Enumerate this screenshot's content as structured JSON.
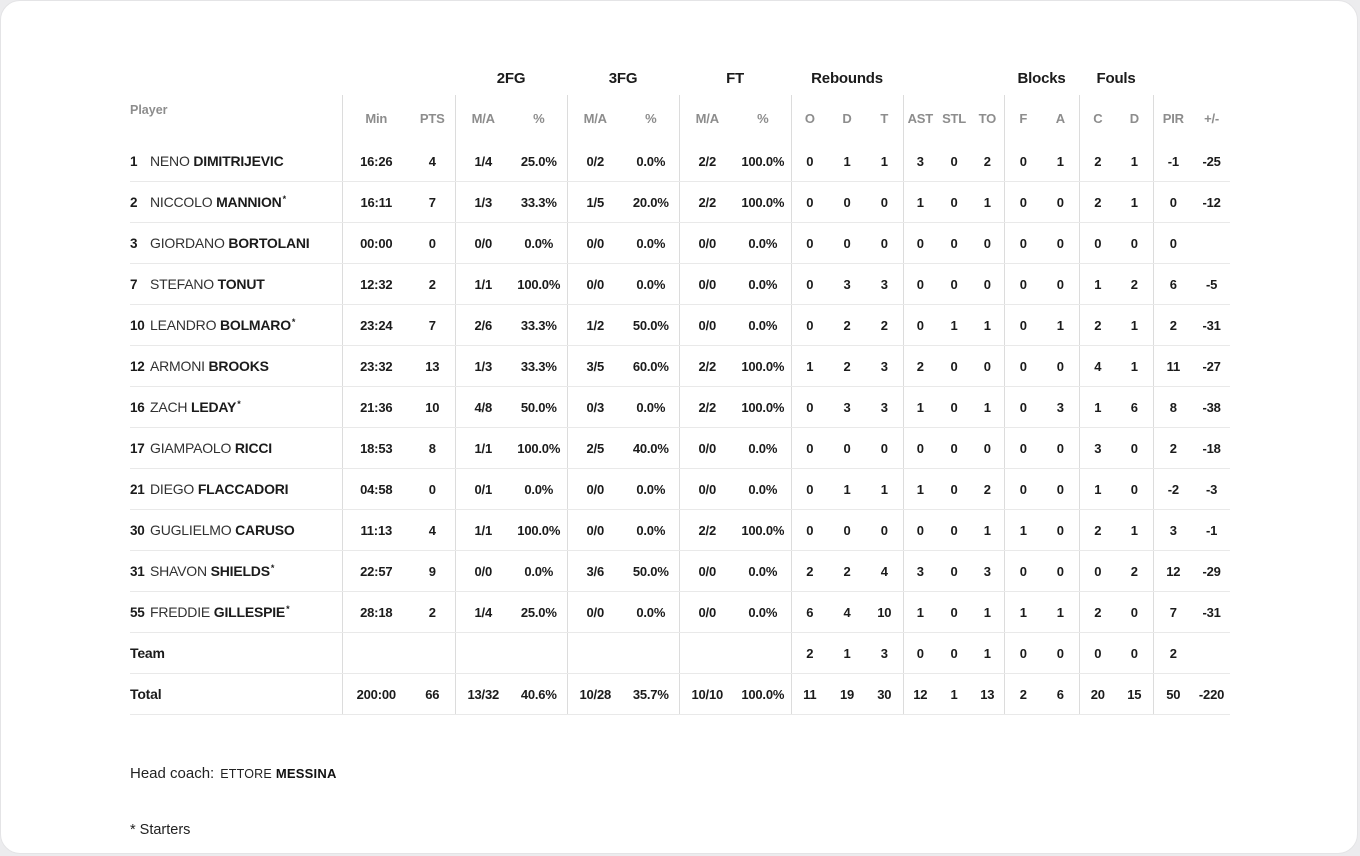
{
  "colors": {
    "card_background": "#ffffff",
    "page_background": "#ececee",
    "text": "#1b1b1b",
    "muted_header": "#8d8d8d",
    "column_divider": "#dcdcdc",
    "row_divider": "#e9e9e9"
  },
  "table": {
    "player_col_header": "Player",
    "starter_mark": "*",
    "groups": [
      {
        "label": "",
        "span": 3
      },
      {
        "label": "2FG",
        "span": 2
      },
      {
        "label": "3FG",
        "span": 2
      },
      {
        "label": "FT",
        "span": 2
      },
      {
        "label": "Rebounds",
        "span": 3
      },
      {
        "label": "",
        "span": 3
      },
      {
        "label": "Blocks",
        "span": 2
      },
      {
        "label": "Fouls",
        "span": 2
      },
      {
        "label": "",
        "span": 2
      }
    ],
    "sub_headers": [
      "Min",
      "PTS",
      "M/A",
      "%",
      "M/A",
      "%",
      "M/A",
      "%",
      "O",
      "D",
      "T",
      "AST",
      "STL",
      "TO",
      "F",
      "A",
      "C",
      "D",
      "PIR",
      "+/-"
    ],
    "stat_keys": [
      "min",
      "pts",
      "2fg-ma",
      "2fg-pct",
      "3fg-ma",
      "3fg-pct",
      "ft-ma",
      "ft-pct",
      "reb-o",
      "reb-d",
      "reb-t",
      "ast",
      "stl",
      "to",
      "blk-f",
      "blk-a",
      "foul-c",
      "foul-d",
      "pir",
      "plus-minus"
    ],
    "rows": [
      {
        "num": "1",
        "first": "NENO",
        "last": "DIMITRIJEVIC",
        "starter": false,
        "stats": [
          "16:26",
          "4",
          "1/4",
          "25.0%",
          "0/2",
          "0.0%",
          "2/2",
          "100.0%",
          "0",
          "1",
          "1",
          "3",
          "0",
          "2",
          "0",
          "1",
          "2",
          "1",
          "-1",
          "-25"
        ]
      },
      {
        "num": "2",
        "first": "NICCOLO",
        "last": "MANNION",
        "starter": true,
        "stats": [
          "16:11",
          "7",
          "1/3",
          "33.3%",
          "1/5",
          "20.0%",
          "2/2",
          "100.0%",
          "0",
          "0",
          "0",
          "1",
          "0",
          "1",
          "0",
          "0",
          "2",
          "1",
          "0",
          "-12"
        ]
      },
      {
        "num": "3",
        "first": "GIORDANO",
        "last": "BORTOLANI",
        "starter": false,
        "stats": [
          "00:00",
          "0",
          "0/0",
          "0.0%",
          "0/0",
          "0.0%",
          "0/0",
          "0.0%",
          "0",
          "0",
          "0",
          "0",
          "0",
          "0",
          "0",
          "0",
          "0",
          "0",
          "0",
          ""
        ]
      },
      {
        "num": "7",
        "first": "STEFANO",
        "last": "TONUT",
        "starter": false,
        "stats": [
          "12:32",
          "2",
          "1/1",
          "100.0%",
          "0/0",
          "0.0%",
          "0/0",
          "0.0%",
          "0",
          "3",
          "3",
          "0",
          "0",
          "0",
          "0",
          "0",
          "1",
          "2",
          "6",
          "-5"
        ]
      },
      {
        "num": "10",
        "first": "LEANDRO",
        "last": "BOLMARO",
        "starter": true,
        "stats": [
          "23:24",
          "7",
          "2/6",
          "33.3%",
          "1/2",
          "50.0%",
          "0/0",
          "0.0%",
          "0",
          "2",
          "2",
          "0",
          "1",
          "1",
          "0",
          "1",
          "2",
          "1",
          "2",
          "-31"
        ]
      },
      {
        "num": "12",
        "first": "ARMONI",
        "last": "BROOKS",
        "starter": false,
        "stats": [
          "23:32",
          "13",
          "1/3",
          "33.3%",
          "3/5",
          "60.0%",
          "2/2",
          "100.0%",
          "1",
          "2",
          "3",
          "2",
          "0",
          "0",
          "0",
          "0",
          "4",
          "1",
          "11",
          "-27"
        ]
      },
      {
        "num": "16",
        "first": "ZACH",
        "last": "LEDAY",
        "starter": true,
        "stats": [
          "21:36",
          "10",
          "4/8",
          "50.0%",
          "0/3",
          "0.0%",
          "2/2",
          "100.0%",
          "0",
          "3",
          "3",
          "1",
          "0",
          "1",
          "0",
          "3",
          "1",
          "6",
          "8",
          "-38"
        ]
      },
      {
        "num": "17",
        "first": "GIAMPAOLO",
        "last": "RICCI",
        "starter": false,
        "stats": [
          "18:53",
          "8",
          "1/1",
          "100.0%",
          "2/5",
          "40.0%",
          "0/0",
          "0.0%",
          "0",
          "0",
          "0",
          "0",
          "0",
          "0",
          "0",
          "0",
          "3",
          "0",
          "2",
          "-18"
        ]
      },
      {
        "num": "21",
        "first": "DIEGO",
        "last": "FLACCADORI",
        "starter": false,
        "stats": [
          "04:58",
          "0",
          "0/1",
          "0.0%",
          "0/0",
          "0.0%",
          "0/0",
          "0.0%",
          "0",
          "1",
          "1",
          "1",
          "0",
          "2",
          "0",
          "0",
          "1",
          "0",
          "-2",
          "-3"
        ]
      },
      {
        "num": "30",
        "first": "GUGLIELMO",
        "last": "CARUSO",
        "starter": false,
        "stats": [
          "11:13",
          "4",
          "1/1",
          "100.0%",
          "0/0",
          "0.0%",
          "2/2",
          "100.0%",
          "0",
          "0",
          "0",
          "0",
          "0",
          "1",
          "1",
          "0",
          "2",
          "1",
          "3",
          "-1"
        ]
      },
      {
        "num": "31",
        "first": "SHAVON",
        "last": "SHIELDS",
        "starter": true,
        "stats": [
          "22:57",
          "9",
          "0/0",
          "0.0%",
          "3/6",
          "50.0%",
          "0/0",
          "0.0%",
          "2",
          "2",
          "4",
          "3",
          "0",
          "3",
          "0",
          "0",
          "0",
          "2",
          "12",
          "-29"
        ]
      },
      {
        "num": "55",
        "first": "FREDDIE",
        "last": "GILLESPIE",
        "starter": true,
        "stats": [
          "28:18",
          "2",
          "1/4",
          "25.0%",
          "0/0",
          "0.0%",
          "0/0",
          "0.0%",
          "6",
          "4",
          "10",
          "1",
          "0",
          "1",
          "1",
          "1",
          "2",
          "0",
          "7",
          "-31"
        ]
      },
      {
        "label": "Team",
        "stats": [
          "",
          "",
          "",
          "",
          "",
          "",
          "",
          "",
          "2",
          "1",
          "3",
          "0",
          "0",
          "1",
          "0",
          "0",
          "0",
          "0",
          "2",
          ""
        ]
      },
      {
        "label": "Total",
        "stats": [
          "200:00",
          "66",
          "13/32",
          "40.6%",
          "10/28",
          "35.7%",
          "10/10",
          "100.0%",
          "11",
          "19",
          "30",
          "12",
          "1",
          "13",
          "2",
          "6",
          "20",
          "15",
          "50",
          "-220"
        ]
      }
    ]
  },
  "footer": {
    "head_coach_label": "Head coach:",
    "coach_first": "ETTORE",
    "coach_last": "MESSINA",
    "starters_note": "* Starters"
  }
}
